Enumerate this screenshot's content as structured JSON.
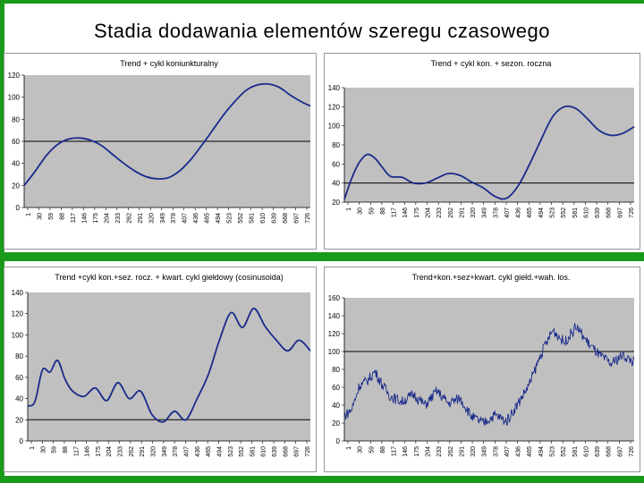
{
  "slide": {
    "title": "Stadia dodawania elementów szeregu czasowego"
  },
  "colors": {
    "accent": "#1a9a1a",
    "plot_bg": "#c0c0c0",
    "line": "#1a2a8a",
    "ref_line": "#000000"
  },
  "chart_data": [
    {
      "type": "line",
      "title": "Trend + cykl koniunkturalny",
      "ylim": [
        0,
        120
      ],
      "yticks": [
        0,
        20,
        40,
        60,
        80,
        100,
        120
      ],
      "xticks": [
        "1",
        "30",
        "59",
        "88",
        "117",
        "146",
        "175",
        "204",
        "233",
        "262",
        "291",
        "320",
        "349",
        "378",
        "407",
        "436",
        "465",
        "494",
        "523",
        "552",
        "581",
        "610",
        "639",
        "668",
        "697",
        "726"
      ],
      "hline": 60,
      "noise": 0,
      "x": [
        1,
        30,
        59,
        88,
        117,
        146,
        175,
        204,
        233,
        262,
        291,
        320,
        349,
        378,
        407,
        436,
        465,
        494,
        523,
        552,
        581,
        610,
        639,
        668,
        697,
        726,
        750
      ],
      "values": [
        20,
        33,
        47,
        57,
        62,
        63,
        61,
        56,
        48,
        40,
        33,
        28,
        26,
        27,
        33,
        43,
        56,
        70,
        84,
        96,
        106,
        111,
        112,
        109,
        102,
        96,
        92
      ]
    },
    {
      "type": "line",
      "title": "Trend + cykl kon. + sezon. roczna",
      "ylim": [
        20,
        140
      ],
      "yticks": [
        20,
        40,
        60,
        80,
        100,
        120,
        140
      ],
      "xticks": [
        "1",
        "30",
        "59",
        "88",
        "117",
        "146",
        "175",
        "204",
        "233",
        "262",
        "291",
        "320",
        "349",
        "378",
        "407",
        "436",
        "465",
        "494",
        "523",
        "552",
        "581",
        "610",
        "639",
        "668",
        "697",
        "726"
      ],
      "hline": 40,
      "noise": 0,
      "x": [
        1,
        20,
        40,
        60,
        80,
        100,
        120,
        150,
        180,
        210,
        240,
        270,
        300,
        330,
        360,
        390,
        420,
        450,
        480,
        510,
        540,
        570,
        600,
        630,
        660,
        690,
        720,
        750
      ],
      "values": [
        23,
        45,
        62,
        70,
        66,
        56,
        47,
        46,
        40,
        40,
        45,
        50,
        48,
        41,
        35,
        26,
        24,
        37,
        60,
        86,
        110,
        120,
        118,
        107,
        95,
        90,
        92,
        99
      ]
    },
    {
      "type": "line",
      "title": "Trend +cykl kon.+sez. rocz. + kwart.  cykl giełdowy (cosinusoida)",
      "ylim": [
        0,
        140
      ],
      "yticks": [
        0,
        20,
        40,
        60,
        80,
        100,
        120,
        140
      ],
      "xticks": [
        "1",
        "30",
        "59",
        "88",
        "117",
        "146",
        "175",
        "204",
        "233",
        "262",
        "291",
        "320",
        "349",
        "378",
        "407",
        "436",
        "465",
        "494",
        "523",
        "552",
        "581",
        "610",
        "639",
        "668",
        "697",
        "726"
      ],
      "hline": 20,
      "noise": 0,
      "x": [
        1,
        20,
        40,
        60,
        80,
        100,
        120,
        150,
        180,
        210,
        240,
        270,
        300,
        330,
        360,
        390,
        420,
        450,
        480,
        510,
        540,
        570,
        600,
        630,
        660,
        690,
        720,
        750
      ],
      "values": [
        33,
        37,
        67,
        65,
        76,
        58,
        47,
        42,
        50,
        38,
        55,
        40,
        47,
        25,
        18,
        28,
        20,
        40,
        63,
        96,
        121,
        107,
        125,
        108,
        95,
        85,
        95,
        85
      ]
    },
    {
      "type": "line",
      "title": "Trend+kon.+sez+kwart. cykl giełd.+wah. los.",
      "ylim": [
        0,
        160
      ],
      "yticks": [
        0,
        20,
        40,
        60,
        80,
        100,
        120,
        140,
        160
      ],
      "xticks": [
        "1",
        "30",
        "59",
        "88",
        "117",
        "146",
        "175",
        "204",
        "233",
        "262",
        "291",
        "320",
        "349",
        "378",
        "407",
        "436",
        "465",
        "494",
        "523",
        "552",
        "581",
        "610",
        "639",
        "668",
        "697",
        "726"
      ],
      "hline": 100,
      "noise": 6,
      "x": [
        1,
        20,
        40,
        60,
        80,
        100,
        120,
        150,
        180,
        210,
        240,
        270,
        300,
        330,
        360,
        390,
        420,
        450,
        480,
        510,
        540,
        570,
        600,
        630,
        660,
        690,
        720,
        750
      ],
      "values": [
        28,
        35,
        62,
        67,
        78,
        62,
        50,
        44,
        52,
        40,
        56,
        42,
        48,
        27,
        20,
        29,
        22,
        42,
        64,
        98,
        124,
        110,
        128,
        110,
        96,
        86,
        96,
        88
      ]
    }
  ]
}
